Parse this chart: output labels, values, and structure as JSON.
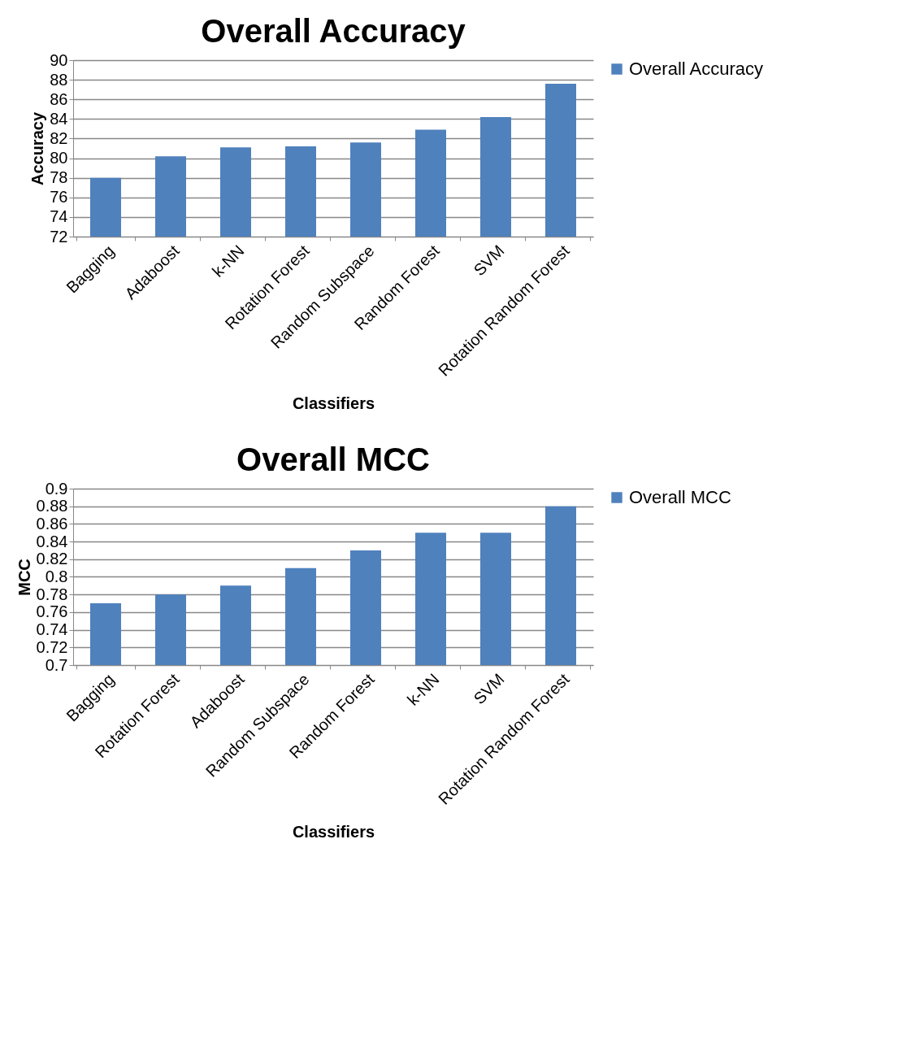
{
  "chart_data": [
    {
      "type": "bar",
      "title": "Overall Accuracy",
      "xlabel": "Classifiers",
      "ylabel": "Accuracy",
      "categories": [
        "Bagging",
        "Adaboost",
        "k-NN",
        "Rotation Forest",
        "Random Subspace",
        "Random Forest",
        "SVM",
        "Rotation Random Forest"
      ],
      "series": [
        {
          "name": "Overall Accuracy",
          "color": "#4f81bd",
          "values": [
            78.0,
            80.2,
            81.1,
            81.2,
            81.6,
            82.9,
            84.2,
            87.6
          ]
        }
      ],
      "ylim": [
        72,
        90
      ],
      "yticks": [
        72,
        74,
        76,
        78,
        80,
        82,
        84,
        86,
        88,
        90
      ],
      "grid": "y",
      "legend": "right"
    },
    {
      "type": "bar",
      "title": "Overall MCC",
      "xlabel": "Classifiers",
      "ylabel": "MCC",
      "categories": [
        "Bagging",
        "Rotation Forest",
        "Adaboost",
        "Random Subspace",
        "Random Forest",
        "k-NN",
        "SVM",
        "Rotation Random Forest"
      ],
      "series": [
        {
          "name": "Overall MCC",
          "color": "#4f81bd",
          "values": [
            0.77,
            0.78,
            0.79,
            0.81,
            0.83,
            0.85,
            0.85,
            0.88
          ]
        }
      ],
      "ylim": [
        0.7,
        0.9
      ],
      "yticks": [
        0.7,
        0.72,
        0.74,
        0.76,
        0.78,
        0.8,
        0.82,
        0.84,
        0.86,
        0.88,
        0.9
      ],
      "grid": "y",
      "legend": "right"
    }
  ]
}
